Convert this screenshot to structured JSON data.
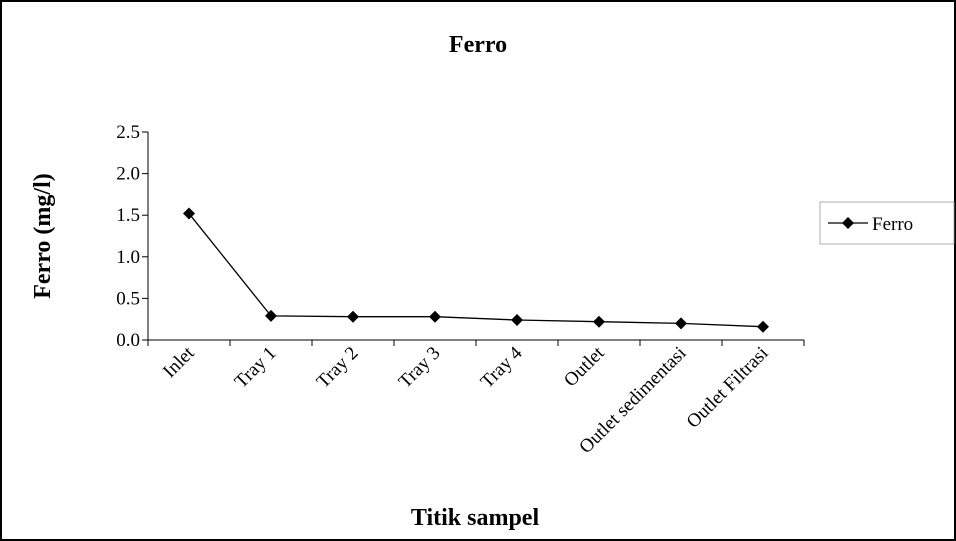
{
  "chart_data": {
    "type": "line",
    "title": "Ferro",
    "x_label": "Titik sampel",
    "y_label": "Ferro (mg/l)",
    "categories": [
      "Inlet",
      "Tray 1",
      "Tray 2",
      "Tray 3",
      "Tray 4",
      "Outlet",
      "Outlet sedimentasi",
      "Outlet Filtrasi"
    ],
    "series": [
      {
        "name": "Ferro",
        "color": "#000000",
        "values": [
          1.52,
          0.29,
          0.28,
          0.28,
          0.24,
          0.22,
          0.2,
          0.16
        ]
      }
    ],
    "ylim": [
      0,
      2.5
    ],
    "yticks": [
      {
        "value": 0,
        "label": "0.0"
      },
      0.5,
      {
        "value": 1,
        "label": "1.0"
      },
      1.5,
      {
        "value": 2,
        "label": "2.0"
      },
      2.5
    ],
    "legend": "right",
    "grid": false
  }
}
